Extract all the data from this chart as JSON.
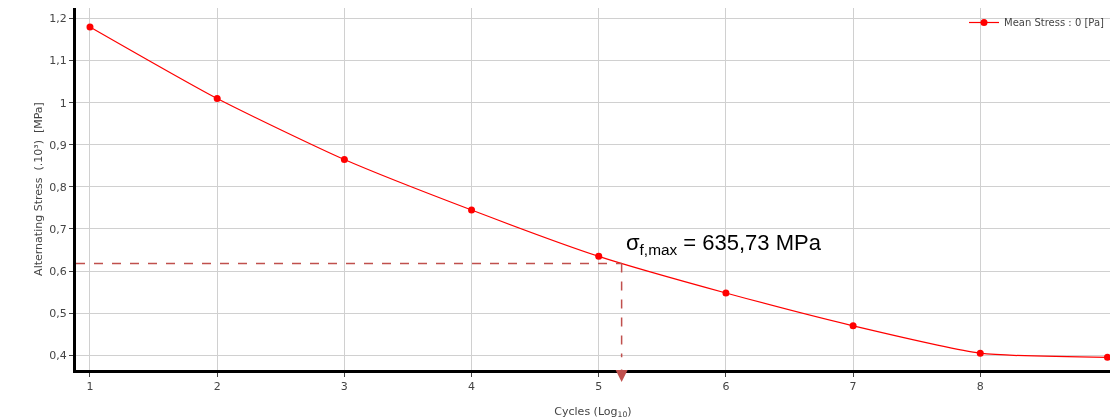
{
  "chart_data": {
    "type": "line",
    "xlabel": "Cycles (Log$_{10}$)",
    "ylabel": "Alternating Stress  (.10³)  [MPa]",
    "x": [
      1,
      2,
      3,
      4,
      5,
      6,
      7,
      8,
      9
    ],
    "series": [
      {
        "name": "Mean Stress : 0 [Pa]",
        "color": "#ff0000",
        "values": [
          1.18,
          1.01,
          0.865,
          0.745,
          0.635,
          0.548,
          0.47,
          0.405,
          0.395
        ]
      }
    ],
    "xlim": [
      0.89,
      9.02
    ],
    "xticks": [
      1,
      2,
      3,
      4,
      5,
      6,
      7,
      8
    ],
    "ylim": [
      0.365,
      1.225
    ],
    "yticks": [
      {
        "value": 0.4,
        "label": "0,4"
      },
      {
        "value": 0.5,
        "label": "0,5"
      },
      {
        "value": 0.6,
        "label": "0,6"
      },
      {
        "value": 0.7,
        "label": "0,7"
      },
      {
        "value": 0.8,
        "label": "0,8"
      },
      {
        "value": 0.9,
        "label": "0,9"
      },
      {
        "value": 1,
        "label": "1"
      },
      {
        "value": 1.1,
        "label": "1,1"
      },
      {
        "value": 1.2,
        "label": "1,2"
      }
    ],
    "annotations": [
      {
        "text": "σ$_{f,max}$ = 635,73 MPa",
        "x": 5.18,
        "y": 0.618
      }
    ],
    "grid": true,
    "legend": "top right",
    "marker": "circle",
    "line_style": "solid"
  }
}
